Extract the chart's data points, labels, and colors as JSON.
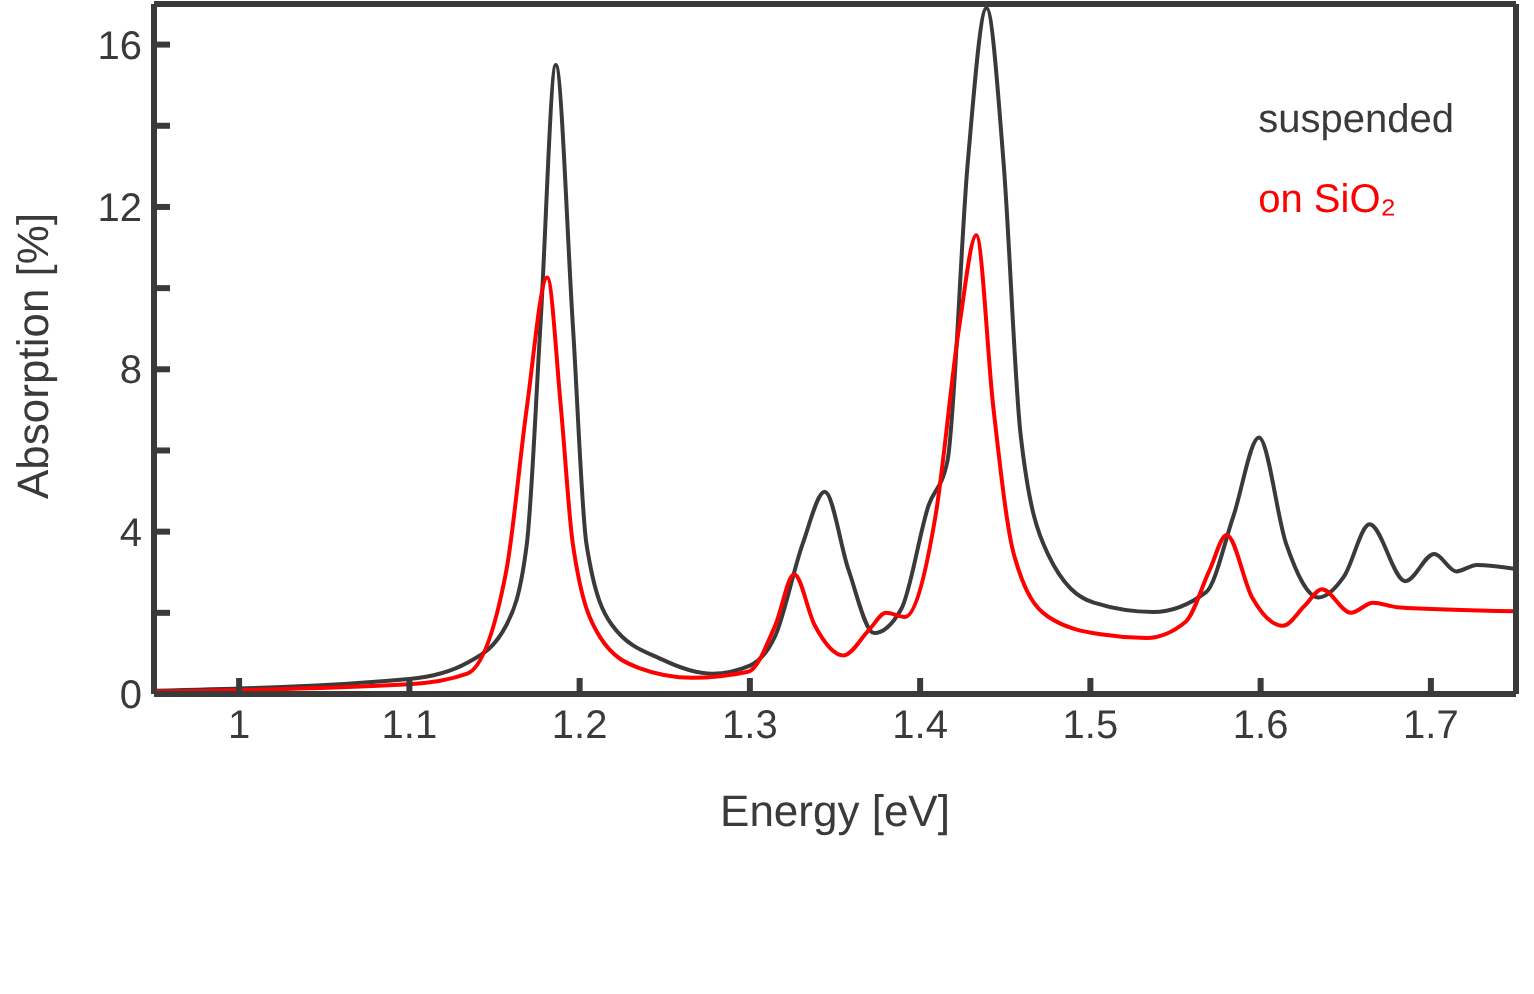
{
  "chart_data": {
    "type": "line",
    "xlabel": "Energy [eV]",
    "ylabel": "Absorption [%]",
    "xlim": [
      0.95,
      1.75
    ],
    "ylim": [
      0,
      17
    ],
    "xticks": [
      1,
      1.1,
      1.2,
      1.3,
      1.4,
      1.5,
      1.6,
      1.7
    ],
    "yticks": [
      0,
      {
        "value": 2,
        "label": null
      },
      4,
      {
        "value": 6,
        "label": null
      },
      8,
      {
        "value": 10,
        "label": null
      },
      12,
      {
        "value": 14,
        "label": null
      },
      16
    ],
    "legend": "top right",
    "marker": "none",
    "line_style": "solid",
    "series": [
      {
        "name": "suspended",
        "color": "#3a3a3a",
        "x": [
          0.95,
          1.1,
          1.134,
          1.157,
          1.169,
          1.177,
          1.186,
          1.196,
          1.204,
          1.219,
          1.249,
          1.278,
          1.3,
          1.315,
          1.331,
          1.344,
          1.358,
          1.373,
          1.389,
          1.405,
          1.416,
          1.428,
          1.439,
          1.449,
          1.459,
          1.475,
          1.502,
          1.537,
          1.568,
          1.584,
          1.599,
          1.615,
          1.634,
          1.649,
          1.664,
          1.685,
          1.702,
          1.715,
          1.727,
          1.75
        ],
        "values": [
          0.08,
          0.37,
          0.77,
          1.7,
          3.7,
          9.1,
          15.5,
          9.1,
          3.7,
          1.7,
          0.84,
          0.5,
          0.7,
          1.44,
          3.7,
          4.98,
          3.05,
          1.5,
          2.1,
          4.65,
          5.73,
          13.1,
          16.9,
          13.1,
          6.4,
          3.45,
          2.25,
          2.02,
          2.51,
          4.38,
          6.32,
          3.7,
          2.38,
          2.9,
          4.18,
          2.78,
          3.45,
          3.02,
          3.18,
          3.08
        ]
      },
      {
        "name": "on SiO₂",
        "color": "#ff0000",
        "x": [
          0.95,
          1.1,
          1.134,
          1.157,
          1.169,
          1.181,
          1.189,
          1.196,
          1.212,
          1.235,
          1.266,
          1.299,
          1.315,
          1.326,
          1.338,
          1.355,
          1.37,
          1.38,
          1.391,
          1.409,
          1.423,
          1.433,
          1.443,
          1.455,
          1.475,
          1.506,
          1.533,
          1.556,
          1.57,
          1.58,
          1.595,
          1.613,
          1.626,
          1.636,
          1.653,
          1.666,
          1.68,
          1.75
        ],
        "values": [
          0.06,
          0.24,
          0.5,
          3.05,
          7.06,
          10.26,
          7.06,
          3.7,
          1.4,
          0.64,
          0.4,
          0.55,
          1.7,
          2.95,
          1.7,
          0.95,
          1.58,
          2.0,
          1.9,
          4.38,
          9.06,
          11.3,
          7.06,
          3.45,
          1.91,
          1.47,
          1.38,
          1.78,
          3.05,
          3.92,
          2.38,
          1.68,
          2.18,
          2.58,
          2.0,
          2.25,
          2.14,
          2.04
        ]
      }
    ]
  }
}
